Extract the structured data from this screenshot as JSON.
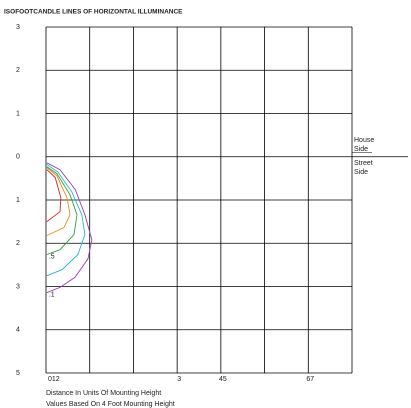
{
  "chart_data": {
    "type": "isoline",
    "title": "ISOFOOTCANDLE LINES OF HORIZONTAL ILLUMINANCE",
    "side_labels": {
      "upper": "House Side",
      "lower": "Street Side"
    },
    "notes": [
      "Distance In Units Of Mounting Height",
      "Values Based On 4 Foot Mounting Height"
    ],
    "xlim": [
      0,
      7
    ],
    "ylim": [
      -5,
      3
    ],
    "xgrid": [
      0,
      1,
      2,
      3,
      4,
      5,
      6,
      7
    ],
    "xticks": [
      {
        "value": 0,
        "label": "012"
      },
      {
        "value": 3,
        "label": "3"
      },
      {
        "value": 4,
        "label": "45"
      },
      {
        "value": 6,
        "label": "67"
      }
    ],
    "yticks": [
      3,
      2,
      1,
      0,
      {
        "value": -1,
        "label": "1"
      },
      {
        "value": -2,
        "label": "2"
      },
      {
        "value": -3,
        "label": "3"
      },
      {
        "value": -4,
        "label": "4"
      },
      {
        "value": -5,
        "label": "5"
      }
    ],
    "grid": true,
    "series": [
      {
        "color": "#e0201c",
        "x": [
          0.02,
          0.21,
          0.34,
          0.32,
          0.02
        ],
        "y": [
          -0.3,
          -0.48,
          -0.95,
          -1.27,
          -1.5
        ]
      },
      {
        "color": "#f08a1c",
        "x": [
          0.02,
          0.25,
          0.48,
          0.55,
          0.41,
          0.02
        ],
        "y": [
          -0.25,
          -0.44,
          -0.95,
          -1.34,
          -1.64,
          -1.82
        ]
      },
      {
        "name": ".5",
        "color": "#2ea043",
        "x": [
          0.02,
          0.25,
          0.55,
          0.71,
          0.64,
          0.32,
          0.02
        ],
        "y": [
          -0.23,
          -0.39,
          -0.88,
          -1.34,
          -1.8,
          -2.15,
          -2.26
        ]
      },
      {
        "color": "#22b5d8",
        "x": [
          0.02,
          0.27,
          0.59,
          0.82,
          0.89,
          0.73,
          0.37,
          0.02
        ],
        "y": [
          -0.18,
          -0.35,
          -0.81,
          -1.34,
          -1.8,
          -2.26,
          -2.61,
          -2.75
        ]
      },
      {
        "name": ".1",
        "color": "#9b3fb5",
        "x": [
          0.02,
          0.32,
          0.67,
          0.89,
          1.05,
          0.96,
          0.66,
          0.32,
          0.02
        ],
        "y": [
          -0.14,
          -0.3,
          -0.76,
          -1.34,
          -1.92,
          -2.36,
          -2.79,
          -3.02,
          -3.14
        ]
      }
    ]
  }
}
